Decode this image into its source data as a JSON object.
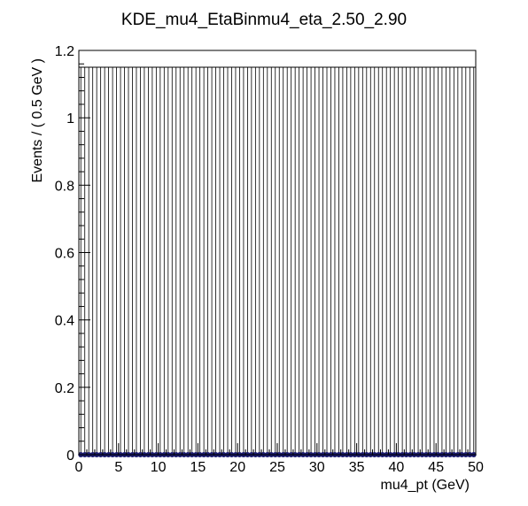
{
  "chart_data": {
    "type": "scatter",
    "title": "KDE_mu4_EtaBinmu4_eta_2.50_2.90",
    "xlabel": "mu4_pt (GeV)",
    "ylabel": "Events / ( 0.5 GeV )",
    "xlim": [
      0,
      50
    ],
    "ylim": [
      0,
      1.2
    ],
    "x_ticks": [
      0,
      5,
      10,
      15,
      20,
      25,
      30,
      35,
      40,
      45,
      50
    ],
    "x_tick_labels": [
      "0",
      "5",
      "10",
      "15",
      "20",
      "25",
      "30",
      "35",
      "40",
      "45",
      "50"
    ],
    "y_ticks": [
      0,
      0.2,
      0.4,
      0.6,
      0.8,
      1,
      1.2
    ],
    "y_tick_labels": [
      "0",
      "0.2",
      "0.4",
      "0.6",
      "0.8",
      "1",
      "1.2"
    ],
    "bin_width": 0.5,
    "error_bar_top": 1.15,
    "point_value": 0,
    "n_bins": 100,
    "grid": false,
    "legend": "none",
    "marker_color": "#1a1a6e",
    "line_color": "#000000"
  }
}
